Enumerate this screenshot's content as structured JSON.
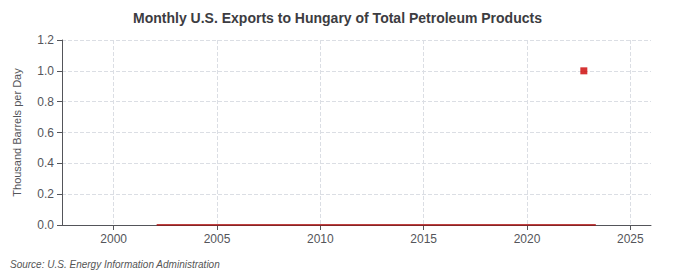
{
  "chart_data": {
    "type": "line",
    "title": "Monthly U.S. Exports to Hungary of Total Petroleum Products",
    "ylabel": "Thousand Barrels per Day",
    "annotation": "Source: U.S. Energy Information Administration",
    "xlim": [
      1997.5,
      2026
    ],
    "xticks": [
      2000,
      2005,
      2010,
      2015,
      2020,
      2025
    ],
    "ylim": [
      0,
      1.2
    ],
    "yticks": [
      {
        "value": 0,
        "label": "0.0"
      },
      0.2,
      0.4,
      0.6,
      0.8,
      {
        "value": 1,
        "label": "1.0"
      },
      1.2
    ],
    "grid": true,
    "series": [
      {
        "type": "line",
        "color": "#aa0000",
        "x": [
          2002.08,
          2002.17,
          2002.25,
          2002.33,
          2002.42,
          2002.5,
          2002.58,
          2002.67,
          2002.75,
          2002.83,
          2002.92,
          2003.0,
          2003.08,
          2003.17,
          2003.25,
          2003.33,
          2003.42,
          2003.5,
          2003.58,
          2003.67,
          2003.75,
          2003.83,
          2003.92,
          2004.0,
          2004.08,
          2004.17,
          2004.25,
          2004.33,
          2004.42,
          2004.5,
          2004.58,
          2004.67,
          2004.75,
          2004.83,
          2004.92,
          2005.0,
          2005.08,
          2005.17,
          2005.25,
          2005.33,
          2005.42,
          2005.5,
          2005.58,
          2005.67,
          2005.75,
          2005.83,
          2005.92,
          2006.0,
          2006.08,
          2006.17,
          2006.25,
          2006.33,
          2006.42,
          2006.5,
          2006.58,
          2006.67,
          2006.75,
          2006.83,
          2006.92,
          2007.0,
          2007.08,
          2007.17,
          2007.25,
          2007.33,
          2007.42,
          2007.5,
          2007.58,
          2007.67,
          2007.75,
          2007.83,
          2007.92,
          2008.0,
          2008.08,
          2008.17,
          2008.25,
          2008.33,
          2008.42,
          2008.5,
          2008.58,
          2008.67,
          2008.75,
          2008.83,
          2008.92,
          2009.0,
          2009.08,
          2009.17,
          2009.25,
          2009.33,
          2009.42,
          2009.5,
          2009.58,
          2009.67,
          2009.75,
          2009.83,
          2009.92,
          2010.0,
          2010.08,
          2010.17,
          2010.25,
          2010.33,
          2010.42,
          2010.5,
          2010.58,
          2010.67,
          2010.75,
          2010.83,
          2010.92,
          2011.0,
          2011.08,
          2011.17,
          2011.25,
          2011.33,
          2011.42,
          2011.5,
          2011.58,
          2011.67,
          2011.75,
          2011.83,
          2011.92,
          2012.0,
          2012.08,
          2012.17,
          2012.25,
          2012.33,
          2012.42,
          2012.5,
          2012.58,
          2012.67,
          2012.75,
          2012.83,
          2012.92,
          2013.0,
          2013.08,
          2013.17,
          2013.25,
          2013.33,
          2013.42,
          2013.5,
          2013.58,
          2013.67,
          2013.75,
          2013.83,
          2013.92,
          2014.0,
          2014.08,
          2014.17,
          2014.25,
          2014.33,
          2014.42,
          2014.5,
          2014.58,
          2014.67,
          2014.75,
          2014.83,
          2014.92,
          2015.0,
          2015.08,
          2015.17,
          2015.25,
          2015.33,
          2015.42,
          2015.5,
          2015.58,
          2015.67,
          2015.75,
          2015.83,
          2015.92,
          2016.0,
          2016.08,
          2016.17,
          2016.25,
          2016.33,
          2016.42,
          2016.5,
          2016.58,
          2016.67,
          2016.75,
          2016.83,
          2016.92,
          2017.0,
          2017.08,
          2017.17,
          2017.25,
          2017.33,
          2017.42,
          2017.5,
          2017.58,
          2017.67,
          2017.75,
          2017.83,
          2017.92,
          2018.0,
          2018.08,
          2018.17,
          2018.25,
          2018.33,
          2018.42,
          2018.5,
          2018.58,
          2018.67,
          2018.75,
          2018.83,
          2018.92,
          2019.0,
          2019.08,
          2019.17,
          2019.25,
          2019.33,
          2019.42,
          2019.5,
          2019.58,
          2019.67,
          2019.75,
          2019.83,
          2019.92,
          2020.0,
          2020.08,
          2020.17,
          2020.25,
          2020.33,
          2020.42,
          2020.5,
          2020.58,
          2020.67,
          2020.75,
          2020.83,
          2020.92,
          2021.0,
          2021.08,
          2021.17,
          2021.25,
          2021.33,
          2021.42,
          2021.5,
          2021.58,
          2021.67,
          2021.75,
          2021.83,
          2021.92,
          2022.0,
          2022.08,
          2022.17,
          2022.25,
          2022.33,
          2022.42,
          2022.5,
          2022.58,
          2022.67,
          2022.75,
          2022.83,
          2022.92,
          2023.0,
          2023.08,
          2023.17,
          2023.25,
          2023.33
        ],
        "values": [
          0.0,
          0.0,
          0.0,
          0.0,
          0.0,
          0.0,
          0.0,
          0.0,
          0.0,
          0.0,
          0.0,
          0.0,
          0.0,
          0.0,
          0.0,
          0.0,
          0.0,
          0.0,
          0.0,
          0.0,
          0.0,
          0.0,
          0.0,
          0.0,
          0.0,
          0.0,
          0.0,
          0.0,
          0.0,
          0.0,
          0.0,
          0.0,
          0.0,
          0.0,
          0.0,
          0.0,
          0.0,
          0.0,
          0.0,
          0.0,
          0.0,
          0.0,
          0.0,
          0.0,
          0.0,
          0.0,
          0.0,
          0.0,
          0.0,
          0.0,
          0.0,
          0.0,
          0.0,
          0.0,
          0.0,
          0.0,
          0.0,
          0.0,
          0.0,
          0.0,
          0.0,
          0.0,
          0.0,
          0.0,
          0.0,
          0.0,
          0.0,
          0.0,
          0.0,
          0.0,
          0.0,
          0.0,
          0.0,
          0.0,
          0.0,
          0.0,
          0.0,
          0.0,
          0.0,
          0.0,
          0.0,
          0.0,
          0.0,
          0.0,
          0.0,
          0.0,
          0.0,
          0.0,
          0.0,
          0.0,
          0.0,
          0.0,
          0.0,
          0.0,
          0.0,
          0.0,
          0.0,
          0.0,
          0.0,
          0.0,
          0.0,
          0.0,
          0.0,
          0.0,
          0.0,
          0.0,
          0.0,
          0.0,
          0.0,
          0.0,
          0.0,
          0.0,
          0.0,
          0.0,
          0.0,
          0.0,
          0.0,
          0.0,
          0.0,
          0.0,
          0.0,
          0.0,
          0.0,
          0.0,
          0.0,
          0.0,
          0.0,
          0.0,
          0.0,
          0.0,
          0.0,
          0.0,
          0.0,
          0.0,
          0.0,
          0.0,
          0.0,
          0.0,
          0.0,
          0.0,
          0.0,
          0.0,
          0.0,
          0.0,
          0.0,
          0.0,
          0.0,
          0.0,
          0.0,
          0.0,
          0.0,
          0.0,
          0.0,
          0.0,
          0.0,
          0.0,
          0.0,
          0.0,
          0.0,
          0.0,
          0.0,
          0.0,
          0.0,
          0.0,
          0.0,
          0.0,
          0.0,
          0.0,
          0.0,
          0.0,
          0.0,
          0.0,
          0.0,
          0.0,
          0.0,
          0.0,
          0.0,
          0.0,
          0.0,
          0.0,
          0.0,
          0.0,
          0.0,
          0.0,
          0.0,
          0.0,
          0.0,
          0.0,
          0.0,
          0.0,
          0.0,
          0.0,
          0.0,
          0.0,
          0.0,
          0.0,
          0.0,
          0.0,
          0.0,
          0.0,
          0.0,
          0.0,
          0.0,
          0.0,
          0.0,
          0.0,
          0.0,
          0.0,
          0.0,
          0.0,
          0.0,
          0.0,
          0.0,
          0.0,
          0.0,
          0.0,
          0.0,
          0.0,
          0.0,
          0.0,
          0.0,
          0.0,
          0.0,
          0.0,
          0.0,
          0.0,
          0.0,
          0.0,
          0.0,
          0.0,
          0.0,
          0.0,
          0.0,
          0.0,
          0.0,
          0.0,
          0.0,
          0.0,
          0.0,
          0.0,
          0.0,
          0.0,
          0.0,
          0.0,
          0.0,
          0.0,
          0.0,
          0.0,
          0.0,
          0.0,
          0.0,
          0.0,
          0.0,
          0.0,
          0.0,
          0.0
        ]
      },
      {
        "type": "scatter",
        "marker": "square",
        "color": "#cc0000",
        "x": [
          2022.75
        ],
        "values": [
          1.0
        ]
      }
    ]
  }
}
